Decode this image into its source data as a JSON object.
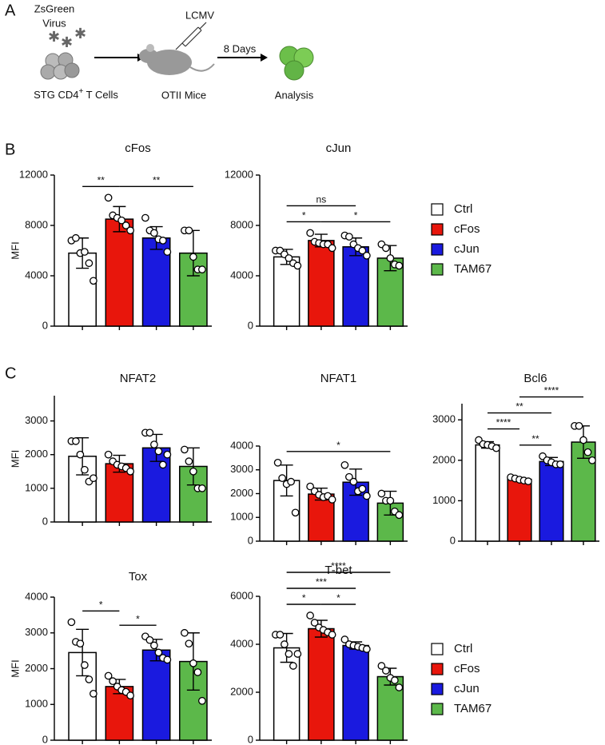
{
  "panels": [
    "A",
    "B",
    "C"
  ],
  "diagram": {
    "virus": [
      "ZsGreen",
      "Virus"
    ],
    "lcmv": "LCMV",
    "days": "8 Days",
    "cells": [
      "STG CD4",
      "+",
      " T Cells"
    ],
    "mice": "OTII Mice",
    "analysis": "Analysis"
  },
  "legends": [
    {
      "entries": [
        {
          "name": "Ctrl",
          "color": "#ffffff"
        },
        {
          "name": "cFos",
          "color": "#e8160c"
        },
        {
          "name": "cJun",
          "color": "#1a1adf"
        },
        {
          "name": "TAM67",
          "color": "#5cb84a"
        }
      ]
    },
    {
      "entries": [
        {
          "name": "Ctrl",
          "color": "#ffffff"
        },
        {
          "name": "cFos",
          "color": "#e8160c"
        },
        {
          "name": "cJun",
          "color": "#1a1adf"
        },
        {
          "name": "TAM67",
          "color": "#5cb84a"
        }
      ]
    }
  ],
  "chart_data": [
    {
      "type": "bar",
      "title": "cFos",
      "ylabel": "MFI",
      "categories": [
        null,
        null,
        null,
        null
      ],
      "values": [
        5800,
        8500,
        7000,
        5800
      ],
      "errors": [
        1200,
        1000,
        900,
        1800
      ],
      "points": [
        [
          6800,
          7000,
          5800,
          5900,
          5000,
          3600
        ],
        [
          10200,
          8800,
          8600,
          8400,
          8000,
          7600
        ],
        [
          8600,
          7600,
          7400,
          6900,
          6800,
          5900
        ],
        [
          7600,
          7600,
          5500,
          4500,
          4500
        ]
      ],
      "colors": [
        "#ffffff",
        "#e8160c",
        "#1a1adf",
        "#5cb84a"
      ],
      "ylim": [
        0,
        12000
      ],
      "yticks": [
        0,
        4000,
        8000,
        12000
      ],
      "significance": [
        {
          "pair": [
            0,
            1
          ],
          "label": "**"
        },
        {
          "pair": [
            1,
            3
          ],
          "label": "**"
        }
      ]
    },
    {
      "type": "bar",
      "title": "cJun",
      "categories": [
        null,
        null,
        null,
        null
      ],
      "values": [
        5500,
        6800,
        6300,
        5400
      ],
      "errors": [
        600,
        500,
        700,
        1000
      ],
      "points": [
        [
          6000,
          6000,
          5700,
          5400,
          5000,
          4800
        ],
        [
          7400,
          6700,
          6600,
          6500,
          6500,
          6200
        ],
        [
          7200,
          7100,
          6500,
          6200,
          6000,
          5600
        ],
        [
          6500,
          6200,
          5400,
          4900,
          4800
        ]
      ],
      "colors": [
        "#ffffff",
        "#e8160c",
        "#1a1adf",
        "#5cb84a"
      ],
      "ylim": [
        0,
        12000
      ],
      "yticks": [
        0,
        4000,
        8000,
        12000
      ],
      "significance": [
        {
          "pair": [
            0,
            1
          ],
          "label": "*"
        },
        {
          "pair": [
            1,
            3
          ],
          "label": "*"
        },
        {
          "pair": [
            0,
            2
          ],
          "label": "ns"
        }
      ]
    },
    {
      "type": "bar",
      "title": "NFAT2",
      "ylabel": "MFI",
      "categories": [
        null,
        null,
        null,
        null
      ],
      "values": [
        1950,
        1730,
        2200,
        1650
      ],
      "errors": [
        550,
        250,
        400,
        550
      ],
      "points": [
        [
          2400,
          2400,
          2000,
          1550,
          1200,
          1300
        ],
        [
          2000,
          1800,
          1700,
          1650,
          1600,
          1500
        ],
        [
          2650,
          2650,
          2300,
          2100,
          1700,
          2000
        ],
        [
          2150,
          1800,
          1500,
          1000,
          1000
        ]
      ],
      "colors": [
        "#ffffff",
        "#e8160c",
        "#1a1adf",
        "#5cb84a"
      ],
      "ylim": [
        0,
        3750
      ],
      "yticks": [
        0,
        1000,
        2000,
        3000
      ],
      "significance": []
    },
    {
      "type": "bar",
      "title": "NFAT1",
      "categories": [
        null,
        null,
        null,
        null
      ],
      "values": [
        2550,
        1980,
        2480,
        1600
      ],
      "errors": [
        650,
        250,
        550,
        500
      ],
      "points": [
        [
          3300,
          2650,
          2400,
          2500,
          1200
        ],
        [
          2300,
          2100,
          1950,
          1850,
          1900,
          1750
        ],
        [
          3200,
          2700,
          2500,
          2100,
          2200,
          1900
        ],
        [
          2000,
          1700,
          1700,
          1250,
          1100
        ]
      ],
      "colors": [
        "#ffffff",
        "#e8160c",
        "#1a1adf",
        "#5cb84a"
      ],
      "ylim": [
        0,
        4000
      ],
      "yticks": [
        0,
        1000,
        2000,
        3000,
        4000
      ],
      "significance": [
        {
          "pair": [
            0,
            3
          ],
          "label": "*"
        }
      ]
    },
    {
      "type": "bar",
      "title": "Bcl6",
      "categories": [
        null,
        null,
        null,
        null
      ],
      "values": [
        2380,
        1530,
        1970,
        2450
      ],
      "errors": [
        80,
        40,
        100,
        400
      ],
      "points": [
        [
          2500,
          2400,
          2380,
          2350,
          2300
        ],
        [
          1580,
          1550,
          1520,
          1500,
          1480
        ],
        [
          2100,
          2000,
          1950,
          1900,
          1900
        ],
        [
          2850,
          2850,
          2500,
          2200,
          2000
        ]
      ],
      "colors": [
        "#ffffff",
        "#e8160c",
        "#1a1adf",
        "#5cb84a"
      ],
      "ylim": [
        0,
        3400
      ],
      "yticks": [
        0,
        1000,
        2000,
        3000
      ],
      "significance": [
        {
          "pair": [
            1,
            2
          ],
          "label": "**"
        },
        {
          "pair": [
            0,
            1
          ],
          "label": "****"
        },
        {
          "pair": [
            0,
            2
          ],
          "label": "**"
        },
        {
          "pair": [
            1,
            3
          ],
          "label": "****"
        }
      ]
    },
    {
      "type": "bar",
      "title": "Tox",
      "ylabel": "MFI",
      "categories": [
        null,
        null,
        null,
        null
      ],
      "values": [
        2450,
        1500,
        2520,
        2200
      ],
      "errors": [
        650,
        200,
        300,
        800
      ],
      "points": [
        [
          3300,
          2750,
          2700,
          2100,
          1700,
          1300
        ],
        [
          1800,
          1650,
          1500,
          1400,
          1350,
          1250
        ],
        [
          2900,
          2800,
          2650,
          2450,
          2300,
          2250
        ],
        [
          3000,
          2700,
          2150,
          1900,
          1100
        ]
      ],
      "colors": [
        "#ffffff",
        "#e8160c",
        "#1a1adf",
        "#5cb84a"
      ],
      "ylim": [
        0,
        4000
      ],
      "yticks": [
        0,
        1000,
        2000,
        3000,
        4000
      ],
      "significance": [
        {
          "pair": [
            0,
            1
          ],
          "label": "*"
        },
        {
          "pair": [
            1,
            2
          ],
          "label": "*"
        }
      ]
    },
    {
      "type": "bar",
      "title": "T-bet",
      "categories": [
        null,
        null,
        null,
        null
      ],
      "values": [
        3850,
        4650,
        3950,
        2650
      ],
      "errors": [
        600,
        350,
        150,
        350
      ],
      "points": [
        [
          4400,
          4400,
          4000,
          3600,
          3100,
          3600
        ],
        [
          5200,
          4900,
          4700,
          4600,
          4500,
          4400
        ],
        [
          4200,
          4000,
          3950,
          3900,
          3850,
          3800
        ],
        [
          3100,
          2900,
          2600,
          2500,
          2200
        ]
      ],
      "colors": [
        "#ffffff",
        "#e8160c",
        "#1a1adf",
        "#5cb84a"
      ],
      "ylim": [
        0,
        6000
      ],
      "yticks": [
        0,
        2000,
        4000,
        6000
      ],
      "significance": [
        {
          "pair": [
            0,
            1
          ],
          "label": "*"
        },
        {
          "pair": [
            1,
            2
          ],
          "label": "*"
        },
        {
          "pair": [
            0,
            2
          ],
          "label": "***"
        },
        {
          "pair": [
            0,
            3
          ],
          "label": "****"
        }
      ]
    }
  ]
}
